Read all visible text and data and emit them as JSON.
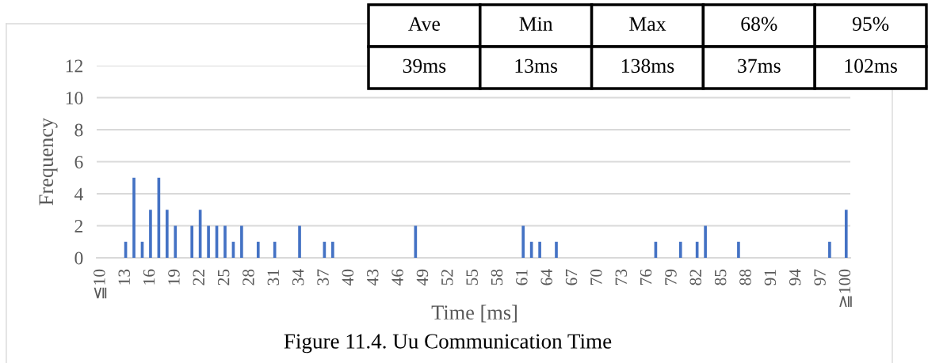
{
  "chart_data": {
    "type": "bar",
    "title": "Figure 11.4. Uu Communication Time",
    "xlabel": "Time [ms]",
    "ylabel": "Frequency",
    "categories": [
      "≦10",
      null,
      null,
      "13",
      null,
      null,
      "16",
      null,
      null,
      "19",
      null,
      null,
      "22",
      null,
      null,
      "25",
      null,
      null,
      "28",
      null,
      null,
      "31",
      null,
      null,
      "34",
      null,
      null,
      "37",
      null,
      null,
      "40",
      null,
      null,
      "43",
      null,
      null,
      "46",
      null,
      null,
      "49",
      null,
      null,
      "52",
      null,
      null,
      "55",
      null,
      null,
      "58",
      null,
      null,
      "61",
      null,
      null,
      "64",
      null,
      null,
      "67",
      null,
      null,
      "70",
      null,
      null,
      "73",
      null,
      null,
      "76",
      null,
      null,
      "79",
      null,
      null,
      "82",
      null,
      null,
      "85",
      null,
      null,
      "88",
      null,
      null,
      "91",
      null,
      null,
      "94",
      null,
      null,
      "97",
      null,
      null,
      "≧100"
    ],
    "values": [
      0,
      0,
      0,
      1,
      5,
      1,
      3,
      5,
      3,
      2,
      0,
      2,
      3,
      2,
      2,
      2,
      1,
      2,
      0,
      1,
      0,
      1,
      0,
      0,
      2,
      0,
      0,
      1,
      1,
      0,
      0,
      0,
      0,
      0,
      0,
      0,
      0,
      0,
      2,
      0,
      0,
      0,
      0,
      0,
      0,
      0,
      0,
      0,
      0,
      0,
      0,
      2,
      1,
      1,
      0,
      1,
      0,
      0,
      0,
      0,
      0,
      0,
      0,
      0,
      0,
      0,
      0,
      1,
      0,
      0,
      1,
      0,
      1,
      2,
      0,
      0,
      0,
      1,
      0,
      0,
      0,
      0,
      0,
      0,
      0,
      0,
      0,
      0,
      1,
      0,
      3
    ],
    "color": "#4472c4",
    "ylim": [
      0,
      12
    ],
    "yticks": [
      0,
      2,
      4,
      6,
      8,
      10,
      12
    ],
    "grid": "y",
    "annotations": [
      "Ave",
      "Min",
      "Max",
      "68%",
      "95%",
      "39ms",
      "13ms",
      "138ms",
      "37ms",
      "102ms"
    ]
  }
}
